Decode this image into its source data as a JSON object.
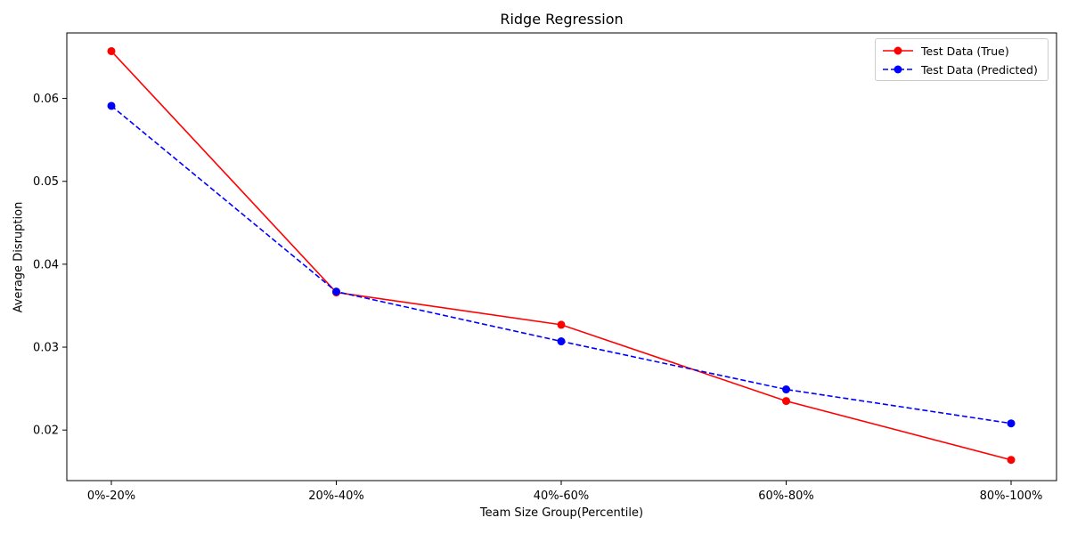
{
  "chart_data": {
    "type": "line",
    "title": "Ridge Regression",
    "xlabel": "Team Size Group(Percentile)",
    "ylabel": "Average Disruption",
    "categories": [
      "0%-20%",
      "20%-40%",
      "40%-60%",
      "60%-80%",
      "80%-100%"
    ],
    "ylim": [
      0.0139,
      0.0679
    ],
    "yticks": [
      0.02,
      0.03,
      0.04,
      0.05,
      0.06
    ],
    "ytick_labels": [
      "0.02",
      "0.03",
      "0.04",
      "0.05",
      "0.06"
    ],
    "grid": false,
    "legend_position": "top-right",
    "series": [
      {
        "name": "Test Data (True)",
        "values": [
          0.0657,
          0.0366,
          0.0327,
          0.0235,
          0.0164
        ],
        "color": "#ff0000",
        "linestyle": "solid",
        "marker": "circle"
      },
      {
        "name": "Test Data (Predicted)",
        "values": [
          0.0591,
          0.0367,
          0.0307,
          0.0249,
          0.0208
        ],
        "color": "#0000ff",
        "linestyle": "dashed",
        "marker": "circle"
      }
    ]
  }
}
